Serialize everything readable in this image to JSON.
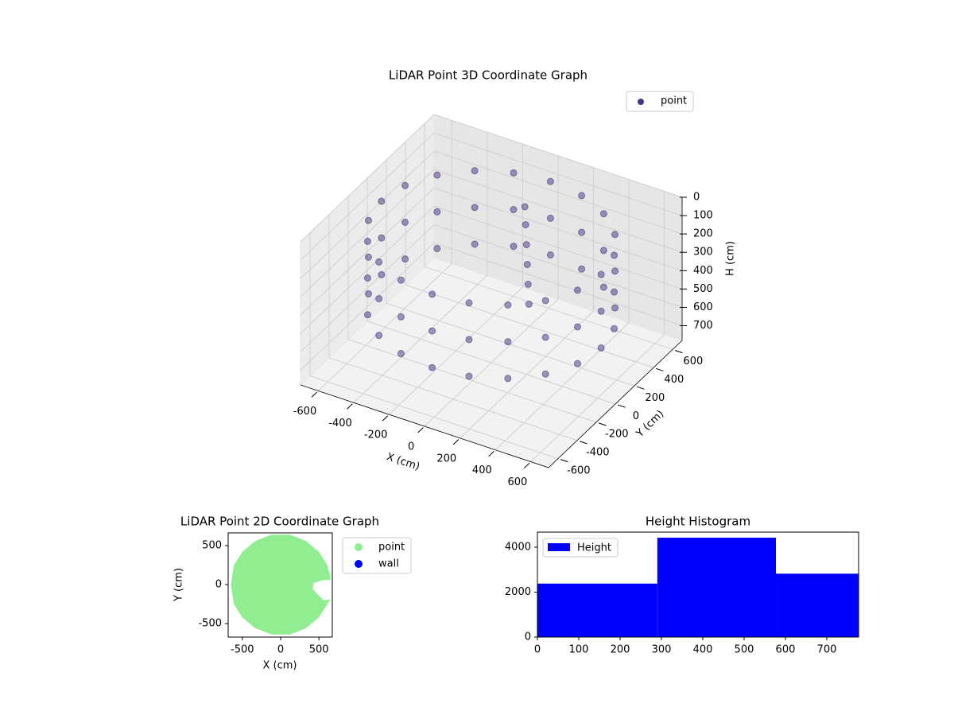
{
  "chart_data": [
    {
      "type": "scatter3d",
      "title": "LiDAR Point 3D Coordinate Graph",
      "xlabel": "X (cm)",
      "ylabel": "Y (cm)",
      "zlabel": "H (cm)",
      "xlim": [
        -700,
        700
      ],
      "ylim": [
        -700,
        700
      ],
      "zlim": [
        0,
        780
      ],
      "z_inverted": true,
      "xticks": [
        -600,
        -400,
        -200,
        0,
        200,
        400,
        600
      ],
      "yticks": [
        -600,
        -400,
        -200,
        0,
        200,
        400,
        600
      ],
      "zticks": [
        0,
        100,
        200,
        300,
        400,
        500,
        600,
        700
      ],
      "grid": true,
      "legend": "upper right",
      "series": [
        {
          "name": "point",
          "color": "#46327e",
          "x": [
            620,
            590,
            502,
            364,
            192,
            0,
            -192,
            -364,
            -502,
            -590,
            -620,
            -590,
            -502,
            -364,
            -192,
            0,
            192,
            364,
            502,
            590,
            620,
            590,
            502,
            364,
            192,
            0,
            -192,
            -364,
            -502,
            -590,
            -620,
            -590,
            -502,
            -364,
            -192,
            0,
            192,
            364,
            502,
            590,
            620,
            590,
            502,
            364,
            192,
            0,
            -192,
            -364,
            -502,
            -590,
            -620,
            -590,
            -502,
            -364,
            -192,
            0,
            192,
            364,
            502,
            590,
            60,
            70,
            80,
            90,
            100,
            110
          ],
          "y": [
            0,
            192,
            364,
            502,
            590,
            620,
            590,
            502,
            364,
            192,
            0,
            -192,
            -364,
            -502,
            -590,
            -620,
            -590,
            -502,
            -364,
            -192,
            0,
            192,
            364,
            502,
            590,
            620,
            590,
            502,
            364,
            192,
            0,
            -192,
            -364,
            -502,
            -590,
            -620,
            -590,
            -502,
            -364,
            -192,
            0,
            192,
            364,
            502,
            590,
            620,
            590,
            502,
            364,
            192,
            0,
            -192,
            -364,
            -502,
            -590,
            -620,
            -590,
            -502,
            -364,
            -192,
            240,
            230,
            220,
            210,
            200,
            190
          ],
          "z": [
            100,
            100,
            100,
            100,
            100,
            100,
            100,
            100,
            100,
            100,
            100,
            100,
            100,
            100,
            100,
            100,
            100,
            100,
            100,
            100,
            300,
            300,
            300,
            300,
            300,
            300,
            300,
            300,
            300,
            300,
            300,
            300,
            300,
            300,
            300,
            300,
            300,
            300,
            300,
            300,
            500,
            500,
            500,
            500,
            500,
            500,
            500,
            500,
            500,
            500,
            500,
            500,
            500,
            500,
            500,
            500,
            500,
            500,
            500,
            500,
            30,
            120,
            220,
            320,
            420,
            520
          ]
        }
      ]
    },
    {
      "type": "scatter",
      "title": "LiDAR Point 2D Coordinate Graph",
      "xlabel": "X (cm)",
      "ylabel": "Y (cm)",
      "xlim": [
        -685,
        675
      ],
      "ylim": [
        -673,
        663
      ],
      "xticks": [
        -500,
        0,
        500
      ],
      "yticks": [
        -500,
        0,
        500
      ],
      "legend": "outside right",
      "series": [
        {
          "name": "point",
          "color": "#90ee90",
          "x": [
            650,
            610,
            500,
            330,
            120,
            -120,
            -330,
            -500,
            -610,
            -650,
            -610,
            -500,
            -330,
            -120,
            120,
            330,
            500,
            610,
            650,
            560,
            470,
            420,
            430,
            560,
            650
          ],
          "y": [
            100,
            250,
            420,
            560,
            640,
            640,
            560,
            420,
            250,
            0,
            -250,
            -420,
            -560,
            -640,
            -640,
            -560,
            -420,
            -250,
            -190,
            -200,
            -110,
            -60,
            20,
            60,
            60
          ]
        },
        {
          "name": "wall",
          "color": "#0000ff",
          "x": [],
          "y": []
        }
      ]
    },
    {
      "type": "histogram",
      "title": "Height Histogram",
      "legend": "upper left",
      "xlim": [
        0,
        777
      ],
      "ylim": [
        0,
        4670
      ],
      "xticks": [
        0,
        100,
        200,
        300,
        400,
        500,
        600,
        700
      ],
      "yticks": [
        0,
        2000,
        4000
      ],
      "series": [
        {
          "name": "Height",
          "color": "#0000ff",
          "bins": [
            0,
            290,
            577,
            777
          ],
          "values": [
            2380,
            4420,
            2820
          ]
        }
      ]
    }
  ]
}
